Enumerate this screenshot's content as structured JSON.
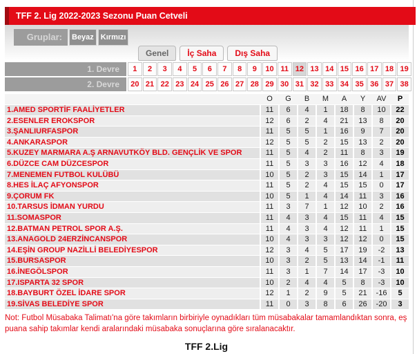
{
  "page": {
    "title_bar": "TFF 2. Lig 2022-2023 Sezonu Puan Cetveli",
    "note": "Not: Futbol Müsabaka Talimatı'na göre takımların birbiriyle oynadıkları tüm müsabakalar tamamlandıktan sonra, eş puana sahip takımlar kendi aralarındaki müsabaka sonuçlarına göre sıralanacaktır.",
    "footer_title": "TFF 2.Lig"
  },
  "colors": {
    "accent_red": "#e30b17",
    "dark_red": "#a00b11",
    "bar_gray": "#9c9c9c",
    "row_odd": "#e1e1e1",
    "row_even": "#eeeeee"
  },
  "groups": {
    "label": "Gruplar:",
    "buttons": [
      "Beyaz",
      "Kırmızı"
    ]
  },
  "tabs": [
    {
      "label": "Genel",
      "active": true
    },
    {
      "label": "İç Saha",
      "active": false
    },
    {
      "label": "Dış Saha",
      "active": false
    }
  ],
  "rounds": {
    "first_label": "1. Devre",
    "second_label": "2. Devre",
    "first_weeks": [
      1,
      2,
      3,
      4,
      5,
      6,
      7,
      8,
      9,
      10,
      11,
      12,
      13,
      14,
      15,
      16,
      17,
      18,
      19
    ],
    "second_weeks": [
      20,
      21,
      22,
      23,
      24,
      25,
      26,
      27,
      28,
      29,
      30,
      31,
      32,
      33,
      34,
      35,
      36,
      37,
      38
    ],
    "selected_week": 12
  },
  "table": {
    "columns": [
      "O",
      "G",
      "B",
      "M",
      "A",
      "Y",
      "AV",
      "P"
    ],
    "teams": [
      {
        "rank": 1,
        "name": "AMED SPORTİF FAALİYETLER",
        "stats": [
          11,
          6,
          4,
          1,
          18,
          8,
          10,
          22
        ]
      },
      {
        "rank": 2,
        "name": "ESENLER EROKSPOR",
        "stats": [
          12,
          6,
          2,
          4,
          21,
          13,
          8,
          20
        ]
      },
      {
        "rank": 3,
        "name": "ŞANLIURFASPOR",
        "stats": [
          11,
          5,
          5,
          1,
          16,
          9,
          7,
          20
        ]
      },
      {
        "rank": 4,
        "name": "ANKARASPOR",
        "stats": [
          12,
          5,
          5,
          2,
          15,
          13,
          2,
          20
        ]
      },
      {
        "rank": 5,
        "name": "KUZEY MARMARA A.Ş ARNAVUTKÖY BLD. GENÇLİK VE SPOR",
        "stats": [
          11,
          5,
          4,
          2,
          11,
          8,
          3,
          19
        ]
      },
      {
        "rank": 6,
        "name": "DÜZCE CAM DÜZCESPOR",
        "stats": [
          11,
          5,
          3,
          3,
          16,
          12,
          4,
          18
        ]
      },
      {
        "rank": 7,
        "name": "MENEMEN FUTBOL KULÜBÜ",
        "stats": [
          10,
          5,
          2,
          3,
          15,
          14,
          1,
          17
        ]
      },
      {
        "rank": 8,
        "name": "HES İLAÇ AFYONSPOR",
        "stats": [
          11,
          5,
          2,
          4,
          15,
          15,
          0,
          17
        ]
      },
      {
        "rank": 9,
        "name": "ÇORUM FK",
        "stats": [
          10,
          5,
          1,
          4,
          14,
          11,
          3,
          16
        ]
      },
      {
        "rank": 10,
        "name": "TARSUS İDMAN YURDU",
        "stats": [
          11,
          3,
          7,
          1,
          12,
          10,
          2,
          16
        ]
      },
      {
        "rank": 11,
        "name": "SOMASPOR",
        "stats": [
          11,
          4,
          3,
          4,
          15,
          11,
          4,
          15
        ]
      },
      {
        "rank": 12,
        "name": "BATMAN PETROL SPOR A.Ş.",
        "stats": [
          11,
          4,
          3,
          4,
          12,
          11,
          1,
          15
        ]
      },
      {
        "rank": 13,
        "name": "ANAGOLD 24ERZİNCANSPOR",
        "stats": [
          10,
          4,
          3,
          3,
          12,
          12,
          0,
          15
        ]
      },
      {
        "rank": 14,
        "name": "EŞİN GROUP NAZİLLİ BELEDİYESPOR",
        "stats": [
          12,
          3,
          4,
          5,
          17,
          19,
          -2,
          13
        ]
      },
      {
        "rank": 15,
        "name": "BURSASPOR",
        "stats": [
          10,
          3,
          2,
          5,
          13,
          14,
          -1,
          11
        ]
      },
      {
        "rank": 16,
        "name": "İNEGÖLSPOR",
        "stats": [
          11,
          3,
          1,
          7,
          14,
          17,
          -3,
          10
        ]
      },
      {
        "rank": 17,
        "name": "ISPARTA 32 SPOR",
        "stats": [
          10,
          2,
          4,
          4,
          5,
          8,
          -3,
          10
        ]
      },
      {
        "rank": 18,
        "name": "BAYBURT ÖZEL İDARE SPOR",
        "stats": [
          12,
          1,
          2,
          9,
          5,
          21,
          -16,
          5
        ]
      },
      {
        "rank": 19,
        "name": "SİVAS BELEDİYE SPOR",
        "stats": [
          11,
          0,
          3,
          8,
          6,
          26,
          -20,
          3
        ]
      }
    ]
  }
}
